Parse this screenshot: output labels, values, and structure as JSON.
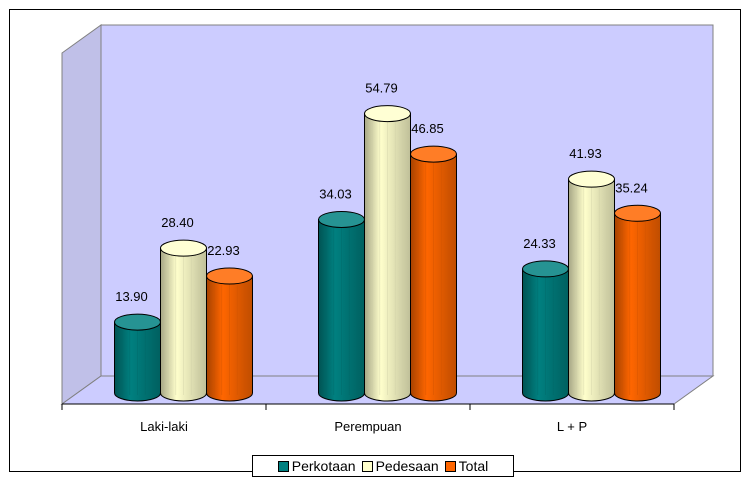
{
  "chart_data": {
    "type": "bar",
    "categories": [
      "Laki-laki",
      "Perempuan",
      "L + P"
    ],
    "series": [
      {
        "name": "Perkotaan",
        "values": [
          13.9,
          34.03,
          24.33
        ],
        "color": "#008080"
      },
      {
        "name": "Pedesaan",
        "values": [
          28.4,
          54.79,
          41.93
        ],
        "color": "#FFFFCC"
      },
      {
        "name": "Total",
        "values": [
          22.93,
          46.85,
          35.24
        ],
        "color": "#FF6600"
      }
    ],
    "value_labels": [
      [
        "13.90",
        "34.03",
        "24.33"
      ],
      [
        "28.40",
        "54.79",
        "41.93"
      ],
      [
        "22.93",
        "46.85",
        "35.24"
      ]
    ],
    "ylim": [
      0,
      60
    ],
    "grid": false,
    "legend_position": "bottom",
    "wall_color": "#CCCCFF"
  }
}
